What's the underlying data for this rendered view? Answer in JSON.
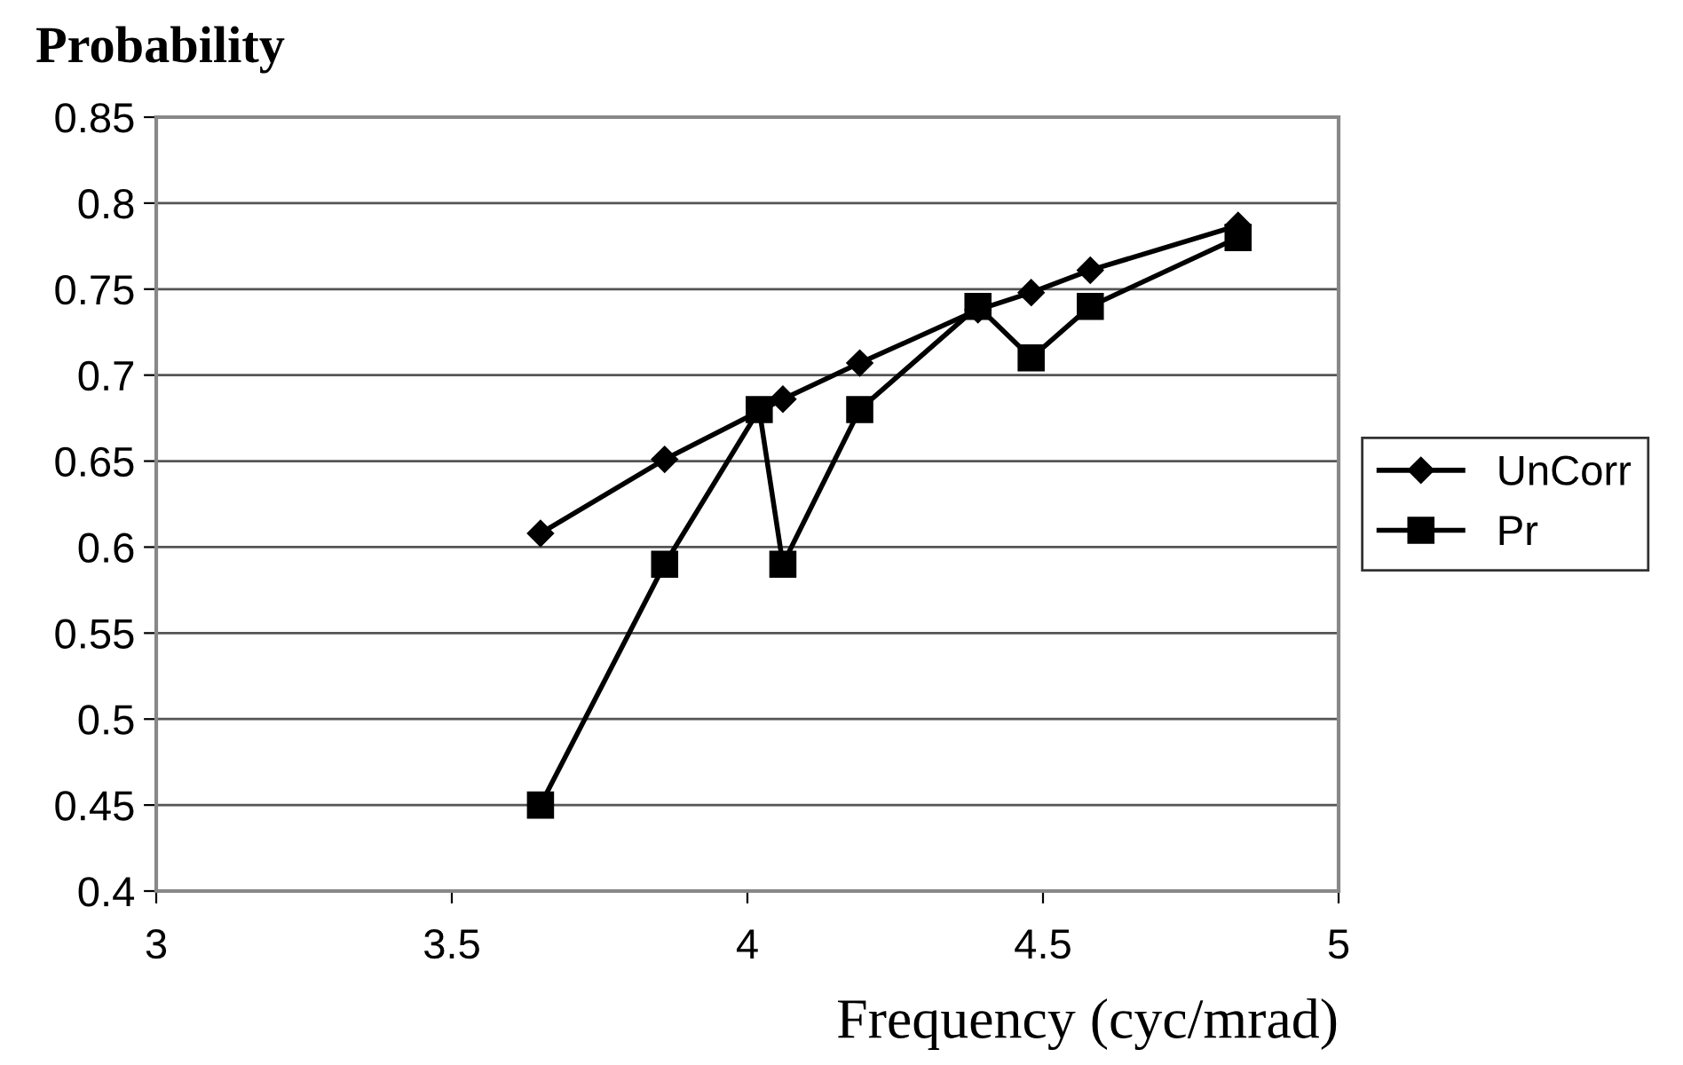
{
  "chart_data": {
    "type": "line",
    "title": "Probability",
    "xlabel": "Frequency (cyc/mrad)",
    "xlim": [
      3,
      5
    ],
    "xticks": [
      3,
      3.5,
      4,
      4.5,
      5
    ],
    "ylim": [
      0.4,
      0.85
    ],
    "yticks": [
      0.4,
      0.45,
      0.5,
      0.55,
      0.6,
      0.65,
      0.7,
      0.75,
      0.8,
      0.85
    ],
    "grid": "y",
    "legend": "right",
    "line_style": "solid",
    "series": [
      {
        "name": "UnCorr",
        "color": "#000000",
        "marker": "diamond",
        "x": [
          3.65,
          3.86,
          4.06,
          4.19,
          4.39,
          4.48,
          4.58,
          4.83
        ],
        "values": [
          0.608,
          0.651,
          0.686,
          0.707,
          0.738,
          0.748,
          0.761,
          0.787
        ]
      },
      {
        "name": "Pr",
        "color": "#000000",
        "marker": "square",
        "x": [
          3.65,
          3.86,
          4.02,
          4.06,
          4.19,
          4.39,
          4.48,
          4.58,
          4.83
        ],
        "values": [
          0.45,
          0.59,
          0.68,
          0.59,
          0.68,
          0.74,
          0.71,
          0.74,
          0.78
        ]
      }
    ]
  }
}
